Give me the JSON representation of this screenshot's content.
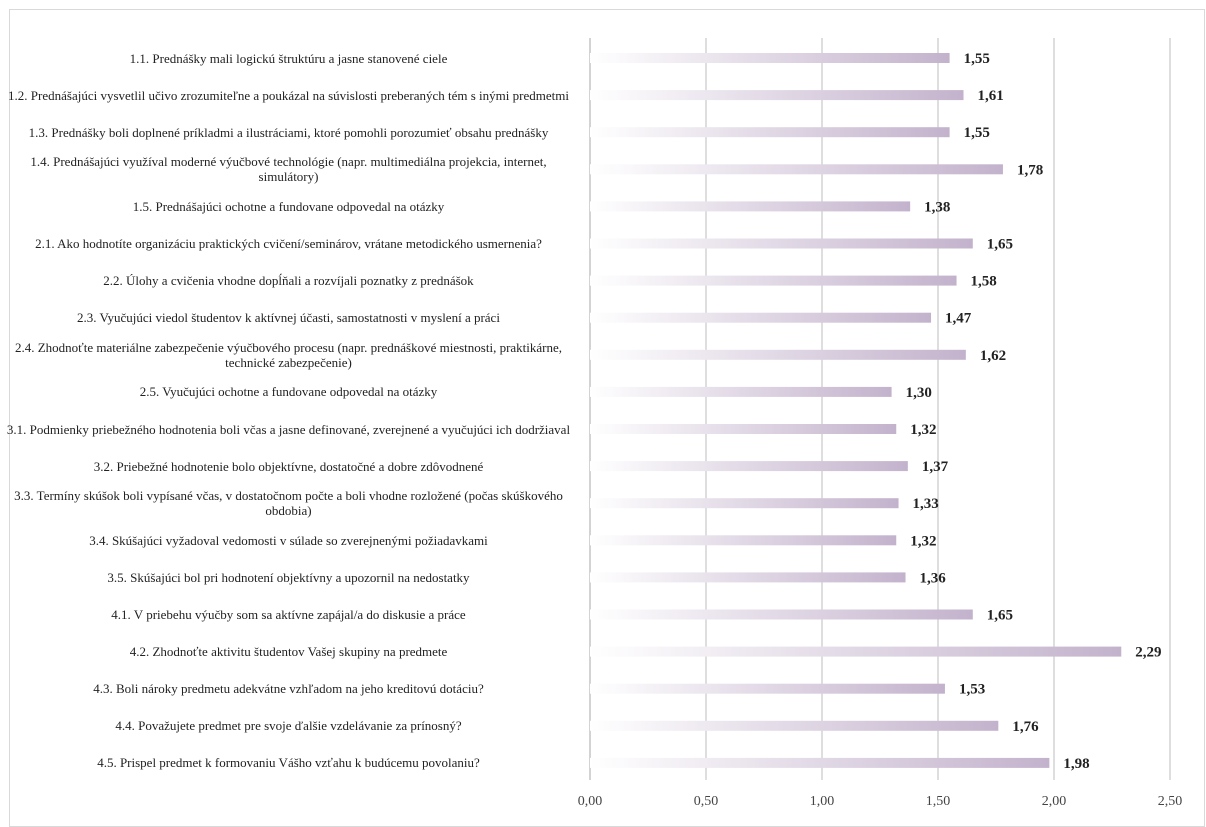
{
  "chart_data": {
    "type": "bar",
    "orientation": "horizontal",
    "categories": [
      "1.1. Prednášky mali logickú štruktúru a jasne stanovené ciele",
      "1.2. Prednášajúci  vysvetlil učivo zrozumiteľne a poukázal na súvislosti preberaných tém s inými predmetmi",
      "1.3. Prednášky boli doplnené príkladmi a ilustráciami, ktoré pomohli porozumieť obsahu prednášky",
      "1.4. Prednášajúci využíval moderné výučbové technológie (napr. multimediálna projekcia, internet, simulátory)",
      "1.5. Prednášajúci ochotne a fundovane odpovedal na otázky",
      "2.1. Ako hodnotíte organizáciu praktických cvičení/seminárov, vrátane metodického usmernenia?",
      "2.2. Úlohy a cvičenia vhodne dopĺňali a rozvíjali poznatky z prednášok",
      "2.3. Vyučujúci viedol študentov k aktívnej účasti, samostatnosti v myslení a práci",
      "2.4. Zhodnoťte materiálne zabezpečenie výučbového procesu (napr. prednáškové miestnosti, praktikárne, technické zabezpečenie)",
      "2.5. Vyučujúci ochotne a fundovane odpovedal na otázky",
      "3.1. Podmienky priebežného hodnotenia boli včas a jasne definované, zverejnené a vyučujúci ich dodržiaval",
      "3.2. Priebežné hodnotenie bolo objektívne, dostatočné a dobre zdôvodnené",
      "3.3. Termíny skúšok boli vypísané včas, v dostatočnom počte a boli vhodne rozložené (počas skúškového obdobia)",
      "3.4. Skúšajúci vyžadoval vedomosti v súlade so zverejnenými požiadavkami",
      "3.5. Skúšajúci bol pri hodnotení objektívny a upozornil na nedostatky",
      "4.1. V priebehu výučby som sa aktívne zapájal/a do diskusie a práce",
      "4.2. Zhodnoťte aktivitu študentov Vašej skupiny na predmete",
      "4.3. Boli nároky predmetu adekvátne vzhľadom na jeho kreditovú dotáciu?",
      "4.4. Považujete predmet pre svoje ďalšie vzdelávanie za prínosný?",
      "4.5. Prispel predmet k formovaniu Vášho vzťahu k budúcemu povolaniu?"
    ],
    "values": [
      1.55,
      1.61,
      1.55,
      1.78,
      1.38,
      1.65,
      1.58,
      1.47,
      1.62,
      1.3,
      1.32,
      1.37,
      1.33,
      1.32,
      1.36,
      1.65,
      2.29,
      1.53,
      1.76,
      1.98
    ],
    "value_labels": [
      "1,55",
      "1,61",
      "1,55",
      "1,78",
      "1,38",
      "1,65",
      "1,58",
      "1,47",
      "1,62",
      "1,30",
      "1,32",
      "1,37",
      "1,33",
      "1,32",
      "1,36",
      "1,65",
      "2,29",
      "1,53",
      "1,76",
      "1,98"
    ],
    "xlim": [
      0,
      2.5
    ],
    "x_ticks": [
      0,
      0.5,
      1.0,
      1.5,
      2.0,
      2.5
    ],
    "x_tick_labels": [
      "0,00",
      "0,50",
      "1,00",
      "1,50",
      "2,00",
      "2,50"
    ],
    "grid": "vertical",
    "bar_color_start": "#ffffff",
    "bar_color_end": "#c3b2cc",
    "gridline_color": "#c8c8c8"
  }
}
